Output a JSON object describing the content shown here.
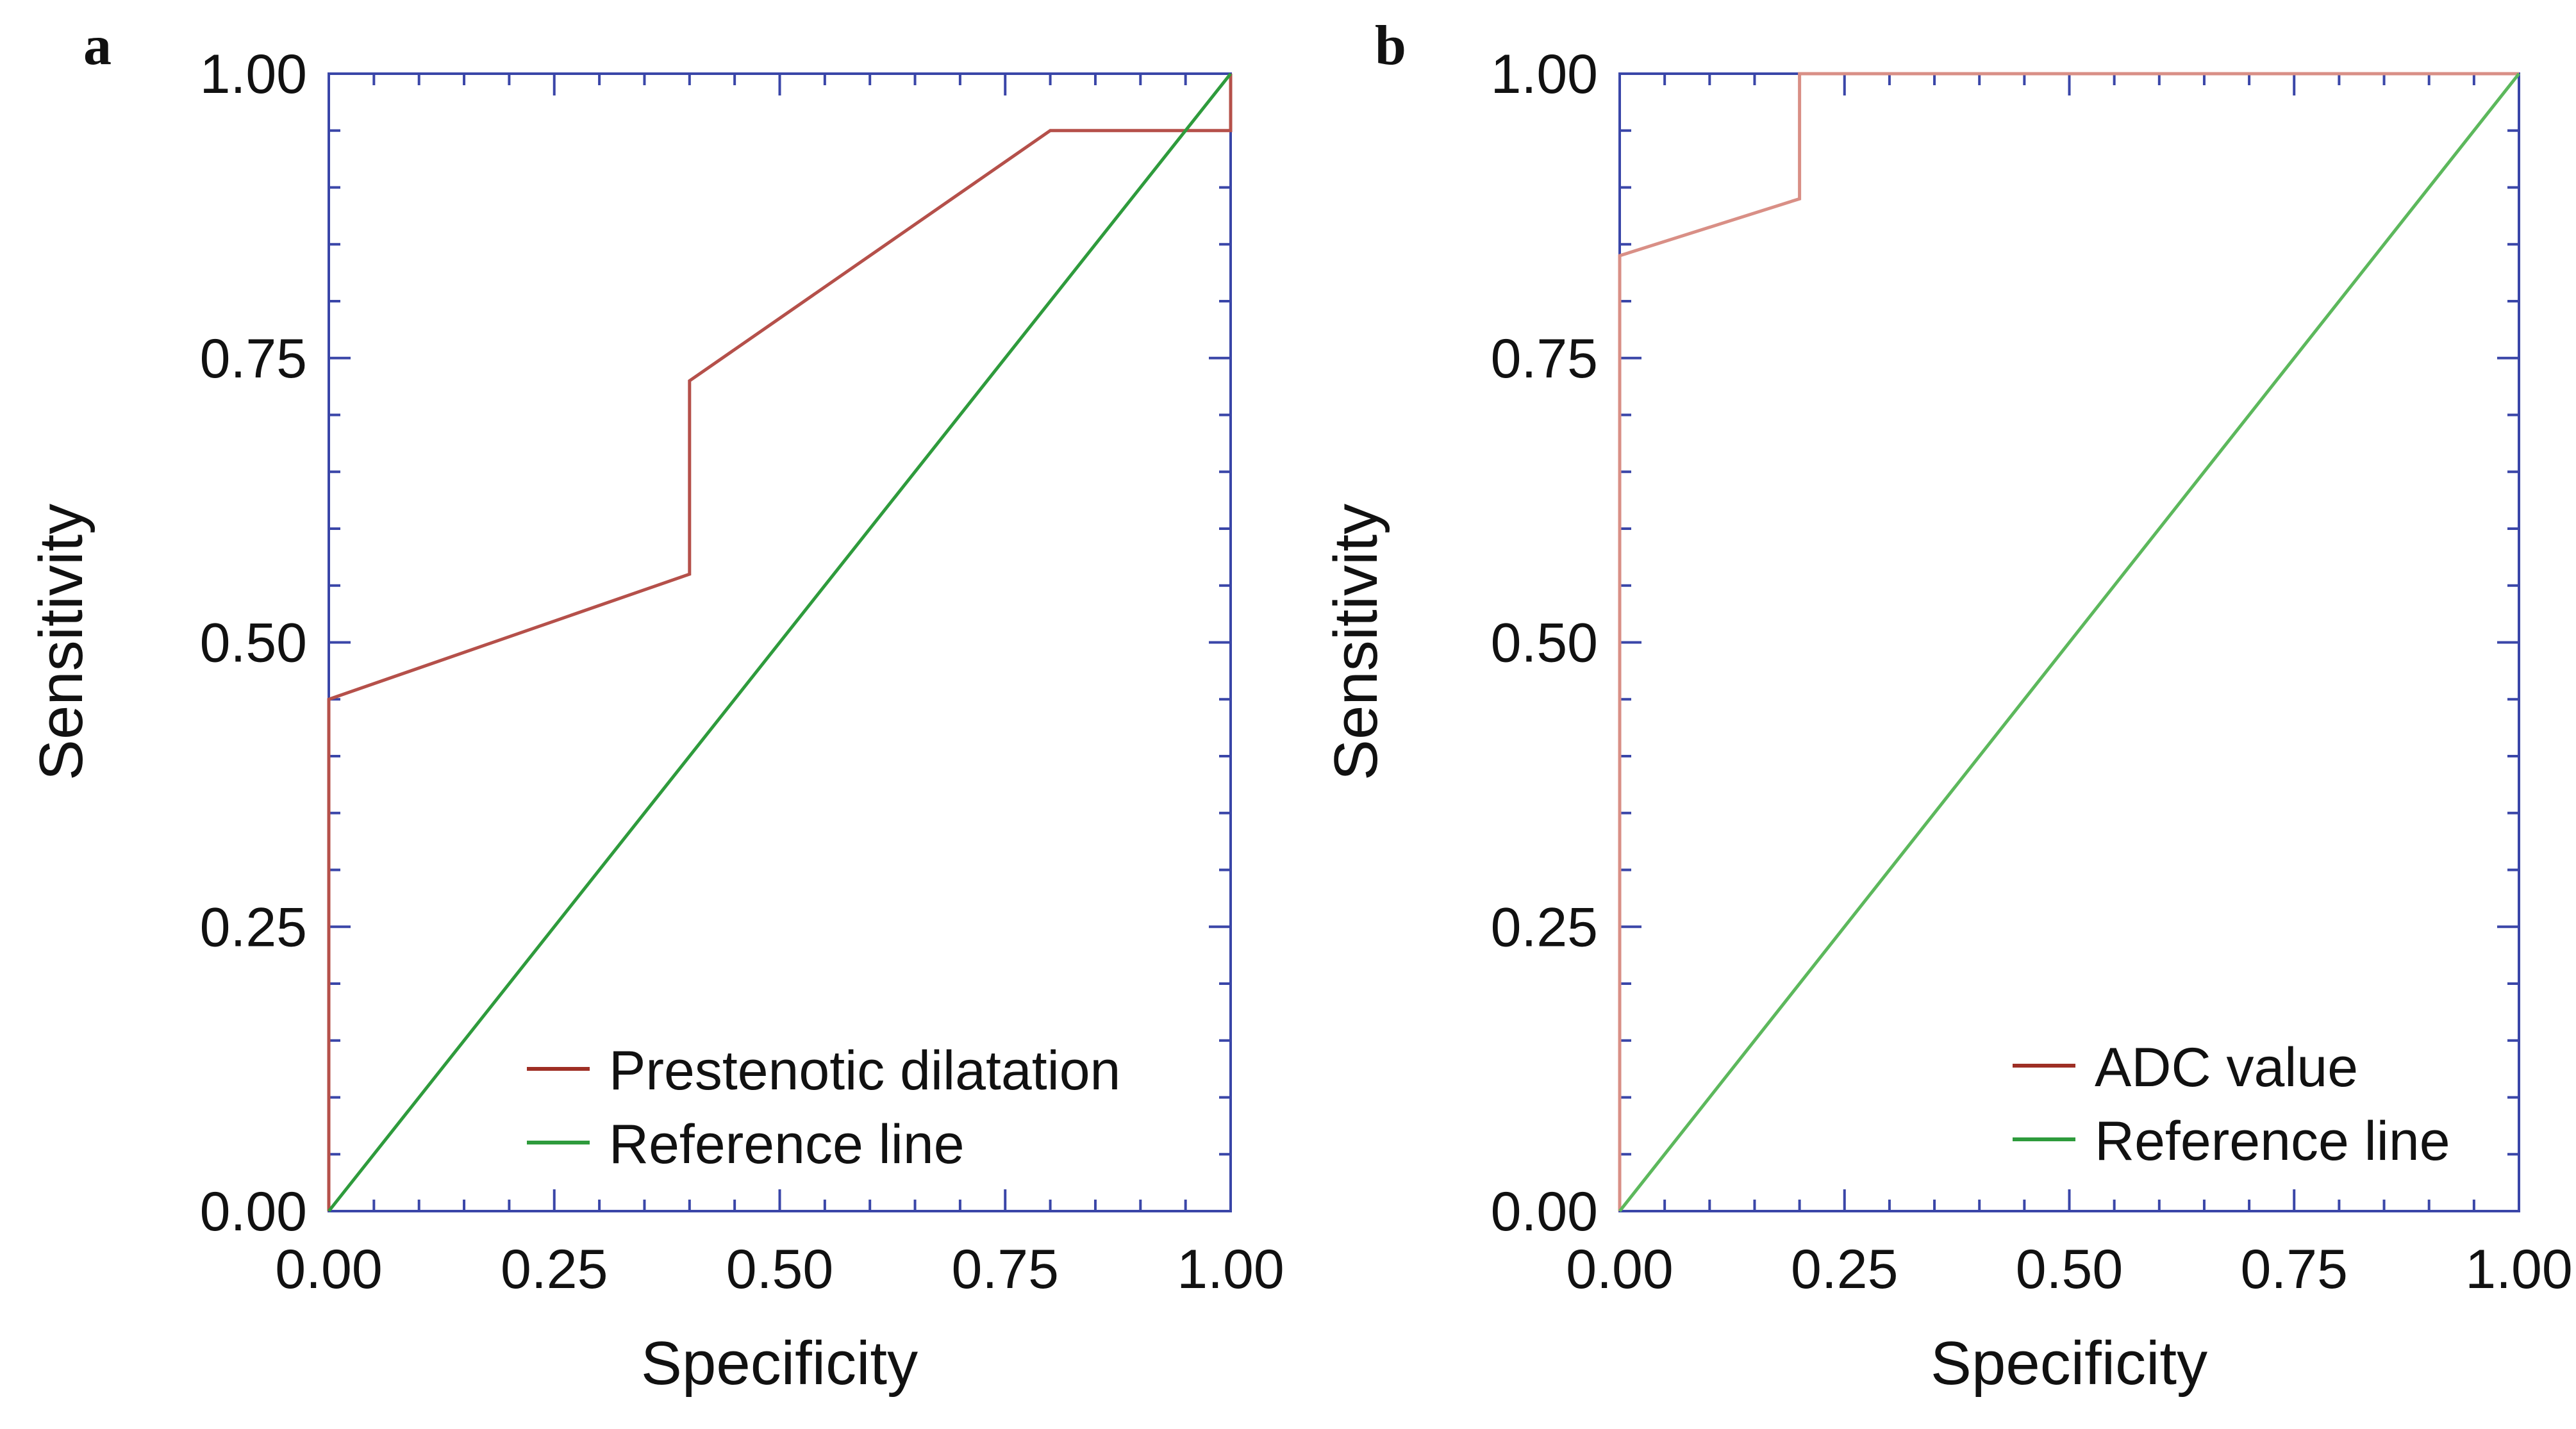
{
  "chart_data": [
    {
      "panel_label": "a",
      "type": "line",
      "title": "",
      "xlabel": "Specificity",
      "ylabel": "Sensitivity",
      "xlim": [
        0,
        1
      ],
      "ylim": [
        0,
        1
      ],
      "xticks": [
        "0.00",
        "0.25",
        "0.50",
        "0.75",
        "1.00"
      ],
      "yticks": [
        "0.00",
        "0.25",
        "0.50",
        "0.75",
        "1.00"
      ],
      "grid": false,
      "legend_position": "bottom-right",
      "series": [
        {
          "name": "Prestenotic dilatation",
          "color": "#b5504a",
          "points": [
            [
              0,
              0
            ],
            [
              0,
              0.45
            ],
            [
              0.4,
              0.56
            ],
            [
              0.4,
              0.73
            ],
            [
              0.8,
              0.95
            ],
            [
              1.0,
              0.95
            ],
            [
              1.0,
              1.0
            ]
          ]
        },
        {
          "name": "Reference line",
          "color": "#2e9b3c",
          "points": [
            [
              0,
              0
            ],
            [
              1,
              1
            ]
          ]
        }
      ]
    },
    {
      "panel_label": "b",
      "type": "line",
      "title": "",
      "xlabel": "Specificity",
      "ylabel": "Sensitivity",
      "xlim": [
        0,
        1
      ],
      "ylim": [
        0,
        1
      ],
      "xticks": [
        "0.00",
        "0.25",
        "0.50",
        "0.75",
        "1.00"
      ],
      "yticks": [
        "0.00",
        "0.25",
        "0.50",
        "0.75",
        "1.00"
      ],
      "grid": false,
      "legend_position": "bottom-right",
      "series": [
        {
          "name": "ADC value",
          "color": "#d98f86",
          "points": [
            [
              0,
              0
            ],
            [
              0,
              0.84
            ],
            [
              0.2,
              0.89
            ],
            [
              0.2,
              1.0
            ],
            [
              1.0,
              1.0
            ]
          ]
        },
        {
          "name": "Reference line",
          "color": "#5cb85c",
          "points": [
            [
              0,
              0
            ],
            [
              1,
              1
            ]
          ]
        }
      ]
    }
  ],
  "colors": {
    "axis_frame": "#3a46a8",
    "legend_line_primary": "#9e2f25",
    "legend_line_reference": "#2e9b3c"
  }
}
